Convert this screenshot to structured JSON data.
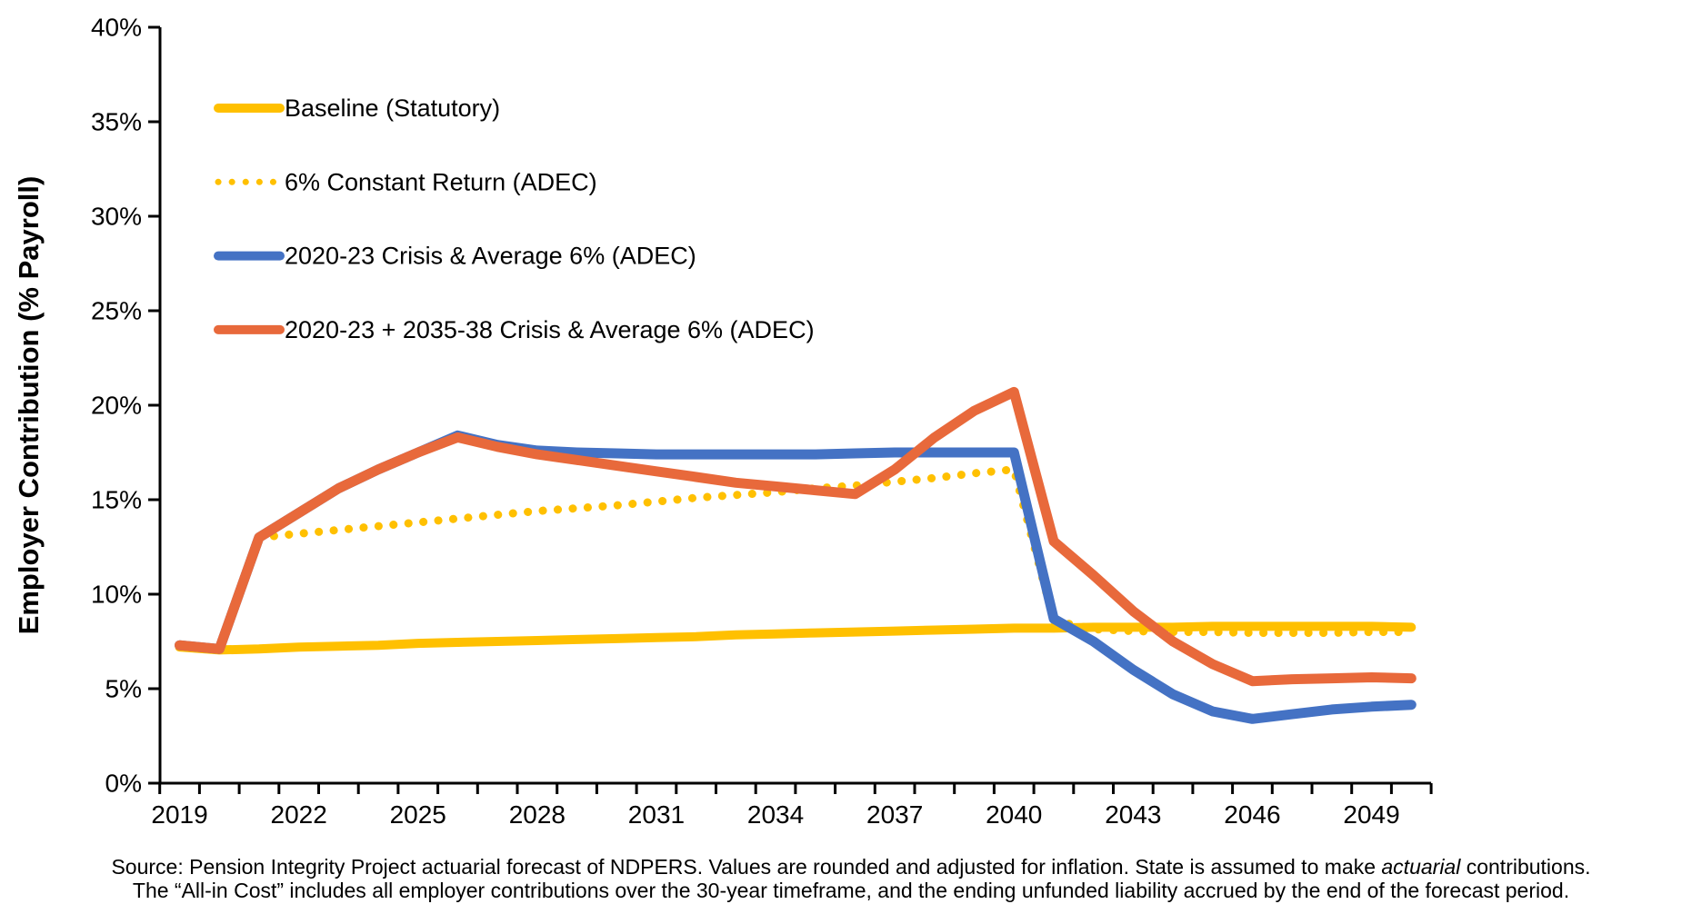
{
  "chart_data": {
    "type": "line",
    "title": "",
    "xlabel": "",
    "ylabel": "Employer Contribution (% Payroll)",
    "xlim": [
      2019,
      2050
    ],
    "ylim": [
      0,
      40
    ],
    "grid": false,
    "legend_position": "top-left-inside",
    "x": [
      2019,
      2020,
      2021,
      2022,
      2023,
      2024,
      2025,
      2026,
      2027,
      2028,
      2029,
      2030,
      2031,
      2032,
      2033,
      2034,
      2035,
      2036,
      2037,
      2038,
      2039,
      2040,
      2041,
      2042,
      2043,
      2044,
      2045,
      2046,
      2047,
      2048,
      2049,
      2050
    ],
    "x_tick_labels": [
      "2019",
      "2022",
      "2025",
      "2028",
      "2031",
      "2034",
      "2037",
      "2040",
      "2043",
      "2046",
      "2049"
    ],
    "y_tick_labels": [
      "0%",
      "5%",
      "10%",
      "15%",
      "20%",
      "25%",
      "30%",
      "35%",
      "40%"
    ],
    "series": [
      {
        "name": "Baseline (Statutory)",
        "color": "#FFC000",
        "style": "solid",
        "width": 10,
        "values": [
          7.2,
          7.05,
          7.1,
          7.2,
          7.25,
          7.3,
          7.4,
          7.45,
          7.5,
          7.55,
          7.6,
          7.65,
          7.7,
          7.75,
          7.85,
          7.9,
          7.95,
          8.0,
          8.05,
          8.1,
          8.15,
          8.2,
          8.2,
          8.25,
          8.25,
          8.25,
          8.3,
          8.3,
          8.3,
          8.3,
          8.3,
          8.25
        ]
      },
      {
        "name": "6% Constant Return (ADEC)",
        "color": "#FFC000",
        "style": "dotted",
        "width": 9,
        "values": [
          null,
          null,
          13.0,
          13.2,
          13.4,
          13.6,
          13.8,
          14.0,
          14.2,
          14.4,
          14.55,
          14.7,
          14.9,
          15.1,
          15.25,
          15.4,
          15.6,
          15.75,
          15.95,
          16.15,
          16.4,
          16.6,
          8.6,
          8.15,
          8.05,
          8.0,
          8.0,
          7.95,
          7.95,
          7.95,
          8.0,
          8.0
        ]
      },
      {
        "name": "2020-23 Crisis & Average 6% (ADEC)",
        "color": "#4472C4",
        "style": "solid",
        "width": 11,
        "values": [
          7.3,
          7.1,
          13.0,
          14.3,
          15.6,
          16.6,
          17.5,
          18.4,
          17.9,
          17.6,
          17.5,
          17.45,
          17.4,
          17.4,
          17.4,
          17.4,
          17.4,
          17.45,
          17.5,
          17.5,
          17.5,
          17.5,
          8.7,
          7.5,
          6.0,
          4.7,
          3.8,
          3.4,
          3.65,
          3.9,
          4.05,
          4.15
        ]
      },
      {
        "name": "2020-23 + 2035-38 Crisis & Average 6% (ADEC)",
        "color": "#E8693B",
        "style": "solid",
        "width": 11,
        "values": [
          7.3,
          7.1,
          13.0,
          14.3,
          15.6,
          16.6,
          17.5,
          18.3,
          17.8,
          17.4,
          17.1,
          16.8,
          16.5,
          16.2,
          15.9,
          15.7,
          15.5,
          15.3,
          16.6,
          18.3,
          19.7,
          20.7,
          12.8,
          11.0,
          9.1,
          7.5,
          6.3,
          5.4,
          5.5,
          5.55,
          5.6,
          5.55
        ]
      }
    ],
    "draw_order": [
      1,
      0,
      2,
      3
    ]
  },
  "source": {
    "line1_pre": "Source: Pension Integrity Project actuarial forecast of NDPERS. Values are rounded and adjusted for inflation. State is assumed to make ",
    "line1_italic": "actuarial",
    "line1_post": " contributions.",
    "line2": "The “All-in Cost” includes all employer contributions over the 30-year timeframe, and the ending unfunded liability accrued by the end of the forecast period."
  }
}
